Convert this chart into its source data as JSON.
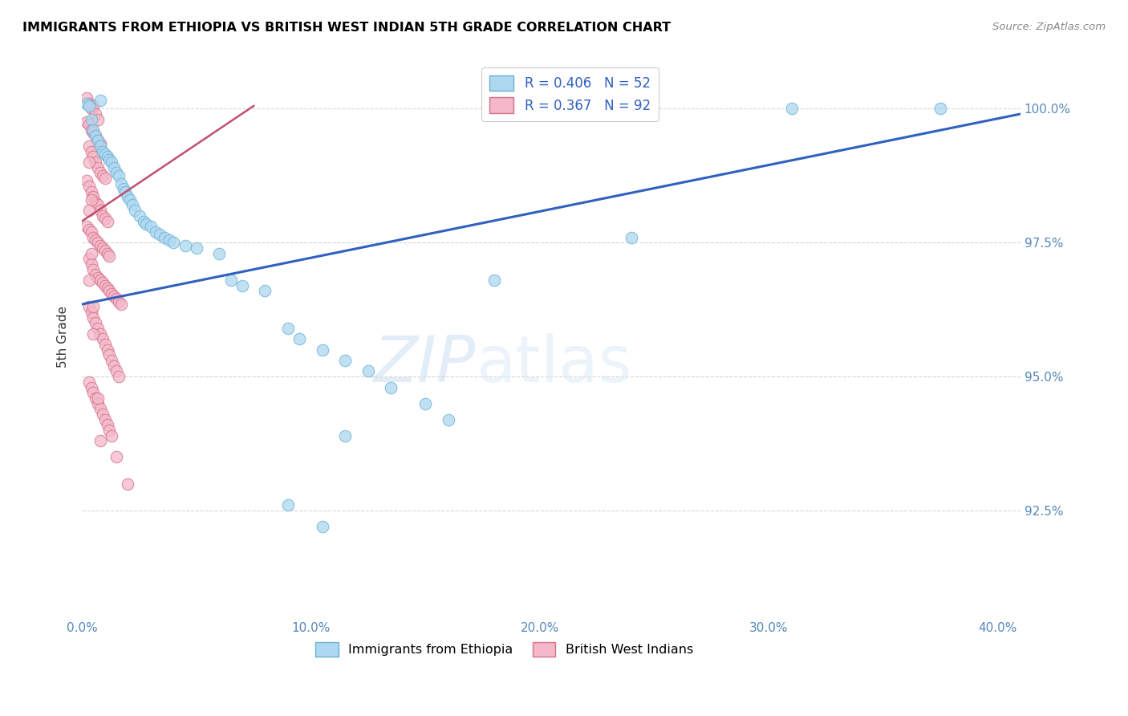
{
  "title": "IMMIGRANTS FROM ETHIOPIA VS BRITISH WEST INDIAN 5TH GRADE CORRELATION CHART",
  "source": "Source: ZipAtlas.com",
  "xlabel_ticks": [
    "0.0%",
    "10.0%",
    "20.0%",
    "30.0%",
    "40.0%"
  ],
  "xlabel_tick_vals": [
    0.0,
    0.1,
    0.2,
    0.3,
    0.4
  ],
  "ylabel": "5th Grade",
  "ylim": [
    90.5,
    101.0
  ],
  "xlim": [
    0.0,
    0.41
  ],
  "legend_r_blue": "R = 0.406",
  "legend_n_blue": "N = 52",
  "legend_r_pink": "R = 0.367",
  "legend_n_pink": "N = 92",
  "legend_label_blue": "Immigrants from Ethiopia",
  "legend_label_pink": "British West Indians",
  "blue_color": "#ADD8F0",
  "pink_color": "#F4B8C8",
  "blue_edge_color": "#6aafd6",
  "pink_edge_color": "#d4708a",
  "blue_line_color": "#3060C0",
  "pink_line_color": "#C05070",
  "watermark_zip": "ZIP",
  "watermark_atlas": "atlas",
  "ytick_vals": [
    92.5,
    95.0,
    97.5,
    100.0
  ],
  "ytick_labels": [
    "92.5%",
    "95.0%",
    "97.5%",
    "100.0%"
  ],
  "blue_scatter": [
    [
      0.002,
      100.1
    ],
    [
      0.003,
      100.05
    ],
    [
      0.008,
      100.15
    ],
    [
      0.004,
      99.8
    ],
    [
      0.005,
      99.6
    ],
    [
      0.006,
      99.5
    ],
    [
      0.007,
      99.4
    ],
    [
      0.008,
      99.3
    ],
    [
      0.009,
      99.2
    ],
    [
      0.01,
      99.15
    ],
    [
      0.011,
      99.1
    ],
    [
      0.012,
      99.05
    ],
    [
      0.013,
      99.0
    ],
    [
      0.014,
      98.9
    ],
    [
      0.015,
      98.8
    ],
    [
      0.016,
      98.75
    ],
    [
      0.017,
      98.6
    ],
    [
      0.018,
      98.5
    ],
    [
      0.019,
      98.45
    ],
    [
      0.02,
      98.35
    ],
    [
      0.021,
      98.3
    ],
    [
      0.022,
      98.2
    ],
    [
      0.023,
      98.1
    ],
    [
      0.025,
      98.0
    ],
    [
      0.027,
      97.9
    ],
    [
      0.028,
      97.85
    ],
    [
      0.03,
      97.8
    ],
    [
      0.032,
      97.7
    ],
    [
      0.034,
      97.65
    ],
    [
      0.036,
      97.6
    ],
    [
      0.038,
      97.55
    ],
    [
      0.04,
      97.5
    ],
    [
      0.045,
      97.45
    ],
    [
      0.05,
      97.4
    ],
    [
      0.06,
      97.3
    ],
    [
      0.065,
      96.8
    ],
    [
      0.07,
      96.7
    ],
    [
      0.08,
      96.6
    ],
    [
      0.09,
      95.9
    ],
    [
      0.095,
      95.7
    ],
    [
      0.105,
      95.5
    ],
    [
      0.115,
      95.3
    ],
    [
      0.125,
      95.1
    ],
    [
      0.135,
      94.8
    ],
    [
      0.15,
      94.5
    ],
    [
      0.16,
      94.2
    ],
    [
      0.115,
      93.9
    ],
    [
      0.18,
      96.8
    ],
    [
      0.24,
      97.6
    ],
    [
      0.09,
      92.6
    ],
    [
      0.105,
      92.2
    ],
    [
      0.31,
      100.0
    ],
    [
      0.375,
      100.0
    ]
  ],
  "pink_scatter": [
    [
      0.002,
      100.2
    ],
    [
      0.003,
      100.1
    ],
    [
      0.004,
      100.0
    ],
    [
      0.005,
      100.05
    ],
    [
      0.006,
      99.9
    ],
    [
      0.007,
      99.8
    ],
    [
      0.002,
      99.75
    ],
    [
      0.003,
      99.7
    ],
    [
      0.004,
      99.6
    ],
    [
      0.005,
      99.55
    ],
    [
      0.006,
      99.5
    ],
    [
      0.007,
      99.4
    ],
    [
      0.008,
      99.35
    ],
    [
      0.003,
      99.3
    ],
    [
      0.004,
      99.2
    ],
    [
      0.005,
      99.1
    ],
    [
      0.006,
      99.0
    ],
    [
      0.007,
      98.9
    ],
    [
      0.008,
      98.8
    ],
    [
      0.009,
      98.75
    ],
    [
      0.01,
      98.7
    ],
    [
      0.002,
      98.65
    ],
    [
      0.003,
      98.55
    ],
    [
      0.004,
      98.45
    ],
    [
      0.005,
      98.35
    ],
    [
      0.006,
      98.25
    ],
    [
      0.007,
      98.2
    ],
    [
      0.008,
      98.1
    ],
    [
      0.009,
      98.0
    ],
    [
      0.01,
      97.95
    ],
    [
      0.011,
      97.9
    ],
    [
      0.002,
      97.8
    ],
    [
      0.003,
      97.75
    ],
    [
      0.004,
      97.7
    ],
    [
      0.005,
      97.6
    ],
    [
      0.006,
      97.55
    ],
    [
      0.007,
      97.5
    ],
    [
      0.008,
      97.45
    ],
    [
      0.009,
      97.4
    ],
    [
      0.01,
      97.35
    ],
    [
      0.011,
      97.3
    ],
    [
      0.012,
      97.25
    ],
    [
      0.003,
      97.2
    ],
    [
      0.004,
      97.1
    ],
    [
      0.005,
      97.0
    ],
    [
      0.006,
      96.9
    ],
    [
      0.007,
      96.85
    ],
    [
      0.008,
      96.8
    ],
    [
      0.009,
      96.75
    ],
    [
      0.01,
      96.7
    ],
    [
      0.011,
      96.65
    ],
    [
      0.012,
      96.6
    ],
    [
      0.013,
      96.55
    ],
    [
      0.014,
      96.5
    ],
    [
      0.015,
      96.45
    ],
    [
      0.016,
      96.4
    ],
    [
      0.017,
      96.35
    ],
    [
      0.003,
      96.3
    ],
    [
      0.004,
      96.2
    ],
    [
      0.005,
      96.1
    ],
    [
      0.006,
      96.0
    ],
    [
      0.007,
      95.9
    ],
    [
      0.008,
      95.8
    ],
    [
      0.009,
      95.7
    ],
    [
      0.01,
      95.6
    ],
    [
      0.011,
      95.5
    ],
    [
      0.012,
      95.4
    ],
    [
      0.013,
      95.3
    ],
    [
      0.014,
      95.2
    ],
    [
      0.015,
      95.1
    ],
    [
      0.016,
      95.0
    ],
    [
      0.003,
      94.9
    ],
    [
      0.004,
      94.8
    ],
    [
      0.005,
      94.7
    ],
    [
      0.006,
      94.6
    ],
    [
      0.007,
      94.5
    ],
    [
      0.008,
      94.4
    ],
    [
      0.009,
      94.3
    ],
    [
      0.01,
      94.2
    ],
    [
      0.011,
      94.1
    ],
    [
      0.012,
      94.0
    ],
    [
      0.013,
      93.9
    ],
    [
      0.015,
      93.5
    ],
    [
      0.02,
      93.0
    ],
    [
      0.003,
      99.0
    ],
    [
      0.004,
      98.3
    ],
    [
      0.003,
      96.8
    ],
    [
      0.005,
      95.8
    ],
    [
      0.007,
      94.6
    ],
    [
      0.008,
      93.8
    ],
    [
      0.003,
      98.1
    ],
    [
      0.004,
      97.3
    ],
    [
      0.005,
      96.3
    ]
  ],
  "blue_line_pts": [
    [
      0.0,
      96.35
    ],
    [
      0.41,
      99.9
    ]
  ],
  "pink_line_pts": [
    [
      0.0,
      97.9
    ],
    [
      0.075,
      100.05
    ]
  ]
}
